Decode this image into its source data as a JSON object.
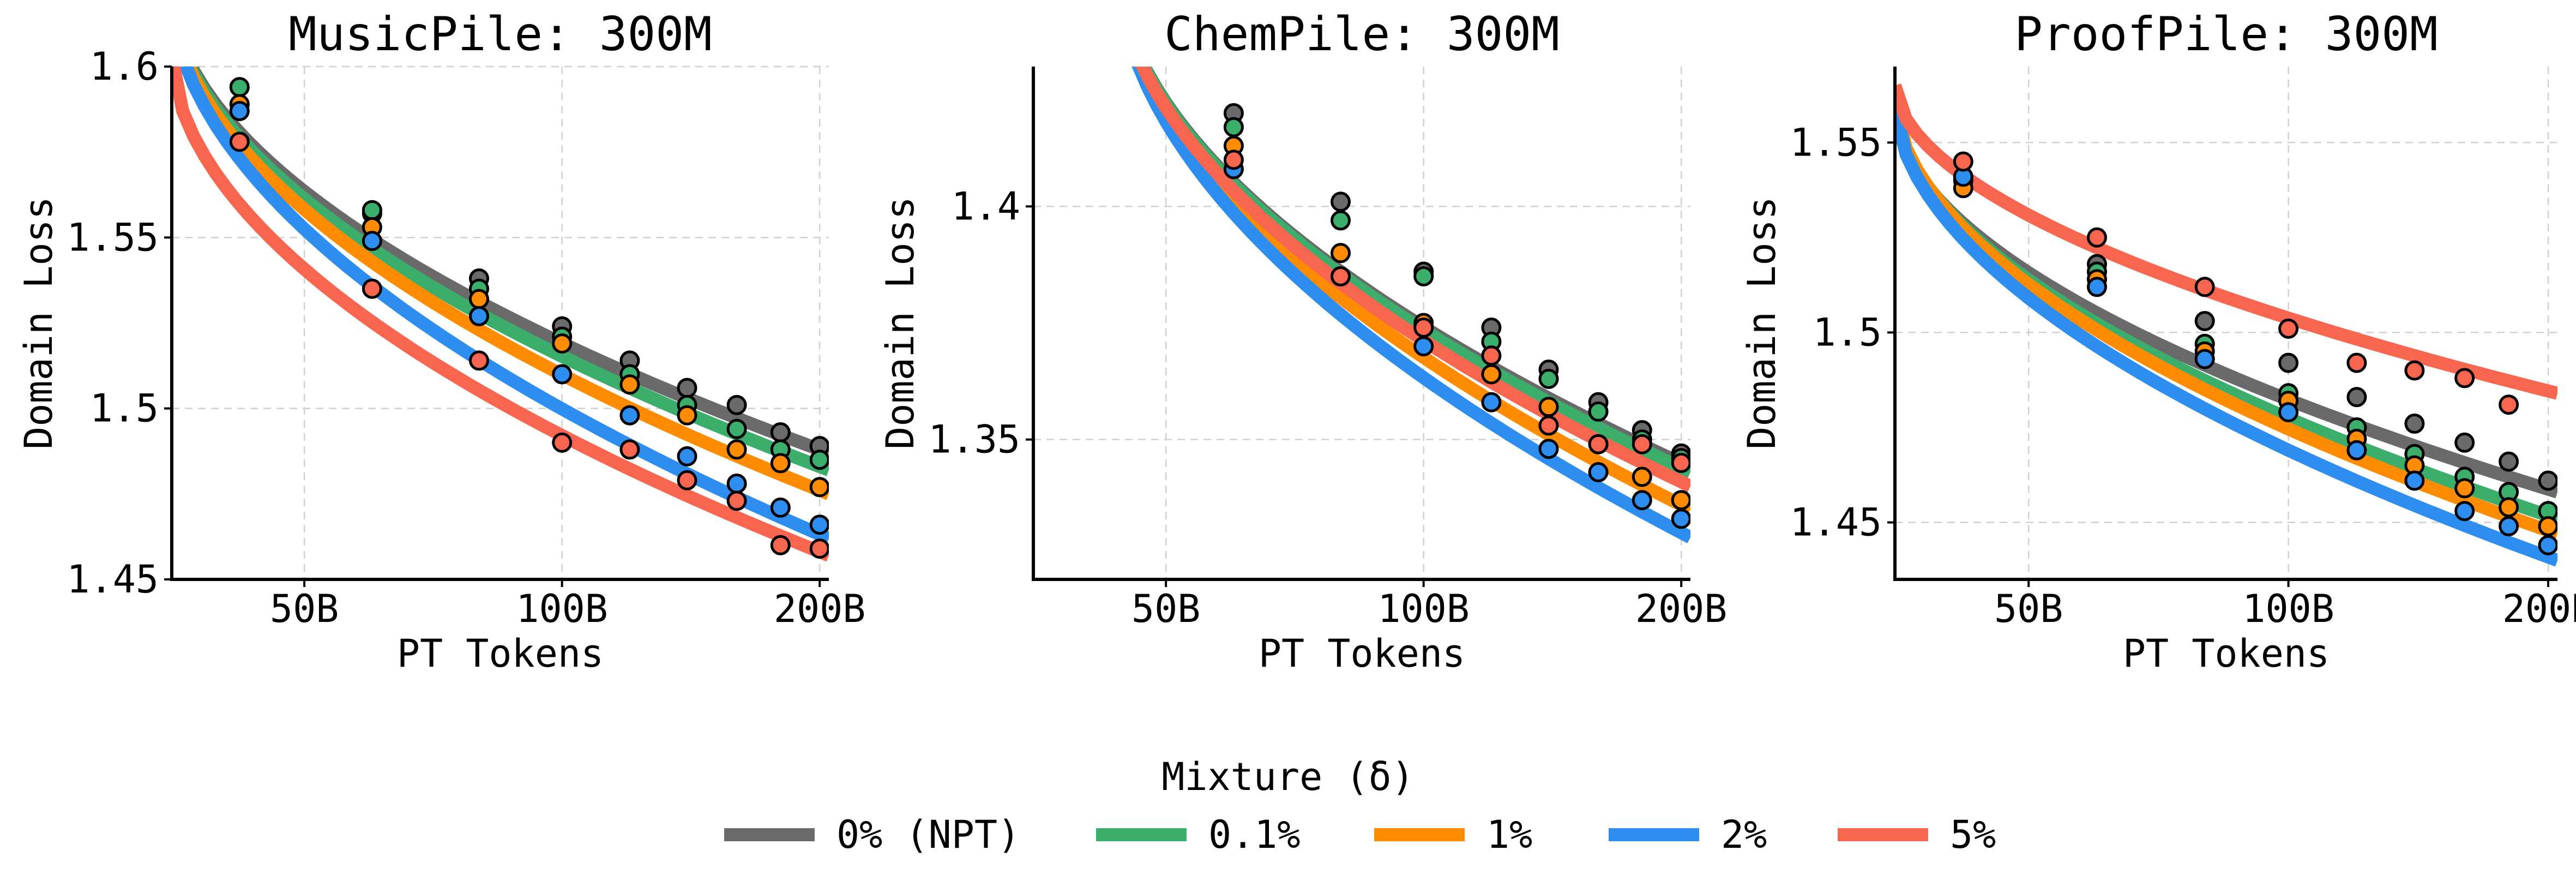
{
  "legend": {
    "title": "Mixture (δ)",
    "entries": [
      {
        "key": "npt",
        "label": "0% (NPT)",
        "color": "#6a6a6a"
      },
      {
        "key": "p01",
        "label": "0.1%",
        "color": "#3cae6b"
      },
      {
        "key": "p1",
        "label": "1%",
        "color": "#ff8c00"
      },
      {
        "key": "p2",
        "label": "2%",
        "color": "#2e8ef0"
      },
      {
        "key": "p5",
        "label": "5%",
        "color": "#f96650"
      }
    ]
  },
  "chart_data": [
    {
      "type": "scatter",
      "title": "MusicPile: 300M",
      "xlabel": "PT Tokens",
      "ylabel": "Domain Loss",
      "xlim": [
        35,
        205
      ],
      "ylim": [
        1.45,
        1.6
      ],
      "xticks": [
        50,
        100,
        200
      ],
      "xtick_labels": [
        "50B",
        "100B",
        "200B"
      ],
      "yticks": [
        1.45,
        1.5,
        1.55,
        1.6
      ],
      "ytick_labels": [
        "1.45",
        "1.5",
        "1.55",
        "1.6"
      ],
      "grid": true,
      "x": [
        42,
        60,
        80,
        100,
        120,
        140,
        160,
        180,
        200
      ],
      "series": [
        {
          "key": "npt",
          "name": "0% (NPT)",
          "points": [
            [
              60,
              1.557
            ],
            [
              80,
              1.538
            ],
            [
              100,
              1.524
            ],
            [
              120,
              1.514
            ],
            [
              140,
              1.506
            ],
            [
              160,
              1.501
            ],
            [
              180,
              1.493
            ],
            [
              200,
              1.489
            ]
          ]
        },
        {
          "key": "p01",
          "name": "0.1%",
          "points": [
            [
              42,
              1.594
            ],
            [
              60,
              1.558
            ],
            [
              80,
              1.535
            ],
            [
              100,
              1.521
            ],
            [
              120,
              1.51
            ],
            [
              140,
              1.501
            ],
            [
              160,
              1.494
            ],
            [
              180,
              1.488
            ],
            [
              200,
              1.485
            ]
          ]
        },
        {
          "key": "p1",
          "name": "1%",
          "points": [
            [
              42,
              1.589
            ],
            [
              60,
              1.553
            ],
            [
              80,
              1.532
            ],
            [
              100,
              1.519
            ],
            [
              120,
              1.507
            ],
            [
              140,
              1.498
            ],
            [
              160,
              1.488
            ],
            [
              180,
              1.484
            ],
            [
              200,
              1.477
            ]
          ]
        },
        {
          "key": "p2",
          "name": "2%",
          "points": [
            [
              42,
              1.587
            ],
            [
              60,
              1.549
            ],
            [
              80,
              1.527
            ],
            [
              100,
              1.51
            ],
            [
              120,
              1.498
            ],
            [
              140,
              1.486
            ],
            [
              160,
              1.478
            ],
            [
              180,
              1.471
            ],
            [
              200,
              1.466
            ]
          ]
        },
        {
          "key": "p5",
          "name": "5%",
          "points": [
            [
              42,
              1.578
            ],
            [
              60,
              1.535
            ],
            [
              80,
              1.514
            ],
            [
              100,
              1.49
            ],
            [
              120,
              1.488
            ],
            [
              140,
              1.479
            ],
            [
              160,
              1.473
            ],
            [
              180,
              1.46
            ],
            [
              200,
              1.459
            ]
          ]
        }
      ],
      "fits": [
        {
          "key": "npt",
          "x": [
            35,
            205
          ],
          "y": [
            1.62,
            1.487
          ]
        },
        {
          "key": "p01",
          "x": [
            35,
            205
          ],
          "y": [
            1.62,
            1.482
          ]
        },
        {
          "key": "p1",
          "x": [
            35,
            205
          ],
          "y": [
            1.62,
            1.475
          ]
        },
        {
          "key": "p2",
          "x": [
            35,
            205
          ],
          "y": [
            1.62,
            1.462
          ]
        },
        {
          "key": "p5",
          "x": [
            35,
            205
          ],
          "y": [
            1.603,
            1.457
          ]
        }
      ]
    },
    {
      "type": "scatter",
      "title": "ChemPile: 300M",
      "xlabel": "PT Tokens",
      "ylabel": "Domain Loss",
      "xlim": [
        35,
        205
      ],
      "ylim": [
        1.32,
        1.43
      ],
      "xticks": [
        50,
        100,
        200
      ],
      "xtick_labels": [
        "50B",
        "100B",
        "200B"
      ],
      "yticks": [
        1.35,
        1.4
      ],
      "ytick_labels": [
        "1.35",
        "1.4"
      ],
      "grid": true,
      "x": [
        60,
        80,
        100,
        120,
        140,
        160,
        180,
        200
      ],
      "series": [
        {
          "key": "npt",
          "name": "0% (NPT)",
          "points": [
            [
              60,
              1.42
            ],
            [
              80,
              1.401
            ],
            [
              100,
              1.386
            ],
            [
              120,
              1.374
            ],
            [
              140,
              1.365
            ],
            [
              160,
              1.358
            ],
            [
              180,
              1.352
            ],
            [
              200,
              1.347
            ]
          ]
        },
        {
          "key": "p01",
          "name": "0.1%",
          "points": [
            [
              60,
              1.417
            ],
            [
              80,
              1.397
            ],
            [
              100,
              1.385
            ],
            [
              120,
              1.371
            ],
            [
              140,
              1.363
            ],
            [
              160,
              1.356
            ],
            [
              180,
              1.35
            ],
            [
              200,
              1.346
            ]
          ]
        },
        {
          "key": "p1",
          "name": "1%",
          "points": [
            [
              60,
              1.413
            ],
            [
              80,
              1.39
            ],
            [
              100,
              1.375
            ],
            [
              120,
              1.364
            ],
            [
              140,
              1.357
            ],
            [
              160,
              1.349
            ],
            [
              180,
              1.342
            ],
            [
              200,
              1.337
            ]
          ]
        },
        {
          "key": "p2",
          "name": "2%",
          "points": [
            [
              60,
              1.408
            ],
            [
              80,
              1.385
            ],
            [
              100,
              1.37
            ],
            [
              120,
              1.358
            ],
            [
              140,
              1.348
            ],
            [
              160,
              1.343
            ],
            [
              180,
              1.337
            ],
            [
              200,
              1.333
            ]
          ]
        },
        {
          "key": "p5",
          "name": "5%",
          "points": [
            [
              60,
              1.41
            ],
            [
              80,
              1.385
            ],
            [
              100,
              1.374
            ],
            [
              120,
              1.368
            ],
            [
              140,
              1.353
            ],
            [
              160,
              1.349
            ],
            [
              180,
              1.349
            ],
            [
              200,
              1.345
            ]
          ]
        }
      ],
      "fits": [
        {
          "key": "npt",
          "x": [
            44,
            205
          ],
          "y": [
            1.45,
            1.344
          ]
        },
        {
          "key": "p01",
          "x": [
            44,
            205
          ],
          "y": [
            1.45,
            1.343
          ]
        },
        {
          "key": "p1",
          "x": [
            44,
            205
          ],
          "y": [
            1.45,
            1.335
          ]
        },
        {
          "key": "p2",
          "x": [
            44,
            205
          ],
          "y": [
            1.45,
            1.329
          ]
        },
        {
          "key": "p5",
          "x": [
            44,
            205
          ],
          "y": [
            1.45,
            1.34
          ]
        }
      ]
    },
    {
      "type": "scatter",
      "title": "ProofPile: 300M",
      "xlabel": "PT Tokens",
      "ylabel": "Domain Loss",
      "xlim": [
        35,
        205
      ],
      "ylim": [
        1.435,
        1.57
      ],
      "xticks": [
        50,
        100,
        200
      ],
      "xtick_labels": [
        "50B",
        "100B",
        "200B"
      ],
      "yticks": [
        1.45,
        1.5,
        1.55
      ],
      "ytick_labels": [
        "1.45",
        "1.5",
        "1.55"
      ],
      "grid": true,
      "x": [
        42,
        60,
        80,
        100,
        120,
        140,
        160,
        180,
        200
      ],
      "series": [
        {
          "key": "npt",
          "name": "0% (NPT)",
          "points": [
            [
              60,
              1.518
            ],
            [
              80,
              1.503
            ],
            [
              100,
              1.492
            ],
            [
              120,
              1.483
            ],
            [
              140,
              1.476
            ],
            [
              160,
              1.471
            ],
            [
              180,
              1.466
            ],
            [
              200,
              1.461
            ]
          ]
        },
        {
          "key": "p01",
          "name": "0.1%",
          "points": [
            [
              42,
              1.54
            ],
            [
              60,
              1.516
            ],
            [
              80,
              1.497
            ],
            [
              100,
              1.484
            ],
            [
              120,
              1.475
            ],
            [
              140,
              1.468
            ],
            [
              160,
              1.462
            ],
            [
              180,
              1.458
            ],
            [
              200,
              1.453
            ]
          ]
        },
        {
          "key": "p1",
          "name": "1%",
          "points": [
            [
              42,
              1.538
            ],
            [
              60,
              1.514
            ],
            [
              80,
              1.495
            ],
            [
              100,
              1.482
            ],
            [
              120,
              1.472
            ],
            [
              140,
              1.465
            ],
            [
              160,
              1.459
            ],
            [
              180,
              1.454
            ],
            [
              200,
              1.449
            ]
          ]
        },
        {
          "key": "p2",
          "name": "2%",
          "points": [
            [
              42,
              1.541
            ],
            [
              60,
              1.512
            ],
            [
              80,
              1.493
            ],
            [
              100,
              1.479
            ],
            [
              120,
              1.469
            ],
            [
              140,
              1.461
            ],
            [
              160,
              1.453
            ],
            [
              180,
              1.449
            ],
            [
              200,
              1.444
            ]
          ]
        },
        {
          "key": "p5",
          "name": "5%",
          "points": [
            [
              42,
              1.545
            ],
            [
              60,
              1.525
            ],
            [
              80,
              1.512
            ],
            [
              100,
              1.501
            ],
            [
              120,
              1.492
            ],
            [
              140,
              1.49
            ],
            [
              160,
              1.488
            ],
            [
              180,
              1.481
            ]
          ]
        }
      ],
      "fits": [
        {
          "key": "npt",
          "x": [
            35,
            205
          ],
          "y": [
            1.558,
            1.458
          ]
        },
        {
          "key": "p01",
          "x": [
            35,
            205
          ],
          "y": [
            1.56,
            1.451
          ]
        },
        {
          "key": "p1",
          "x": [
            35,
            205
          ],
          "y": [
            1.561,
            1.447
          ]
        },
        {
          "key": "p2",
          "x": [
            35,
            205
          ],
          "y": [
            1.56,
            1.44
          ]
        },
        {
          "key": "p5",
          "x": [
            35,
            205
          ],
          "y": [
            1.565,
            1.484
          ]
        }
      ]
    }
  ]
}
